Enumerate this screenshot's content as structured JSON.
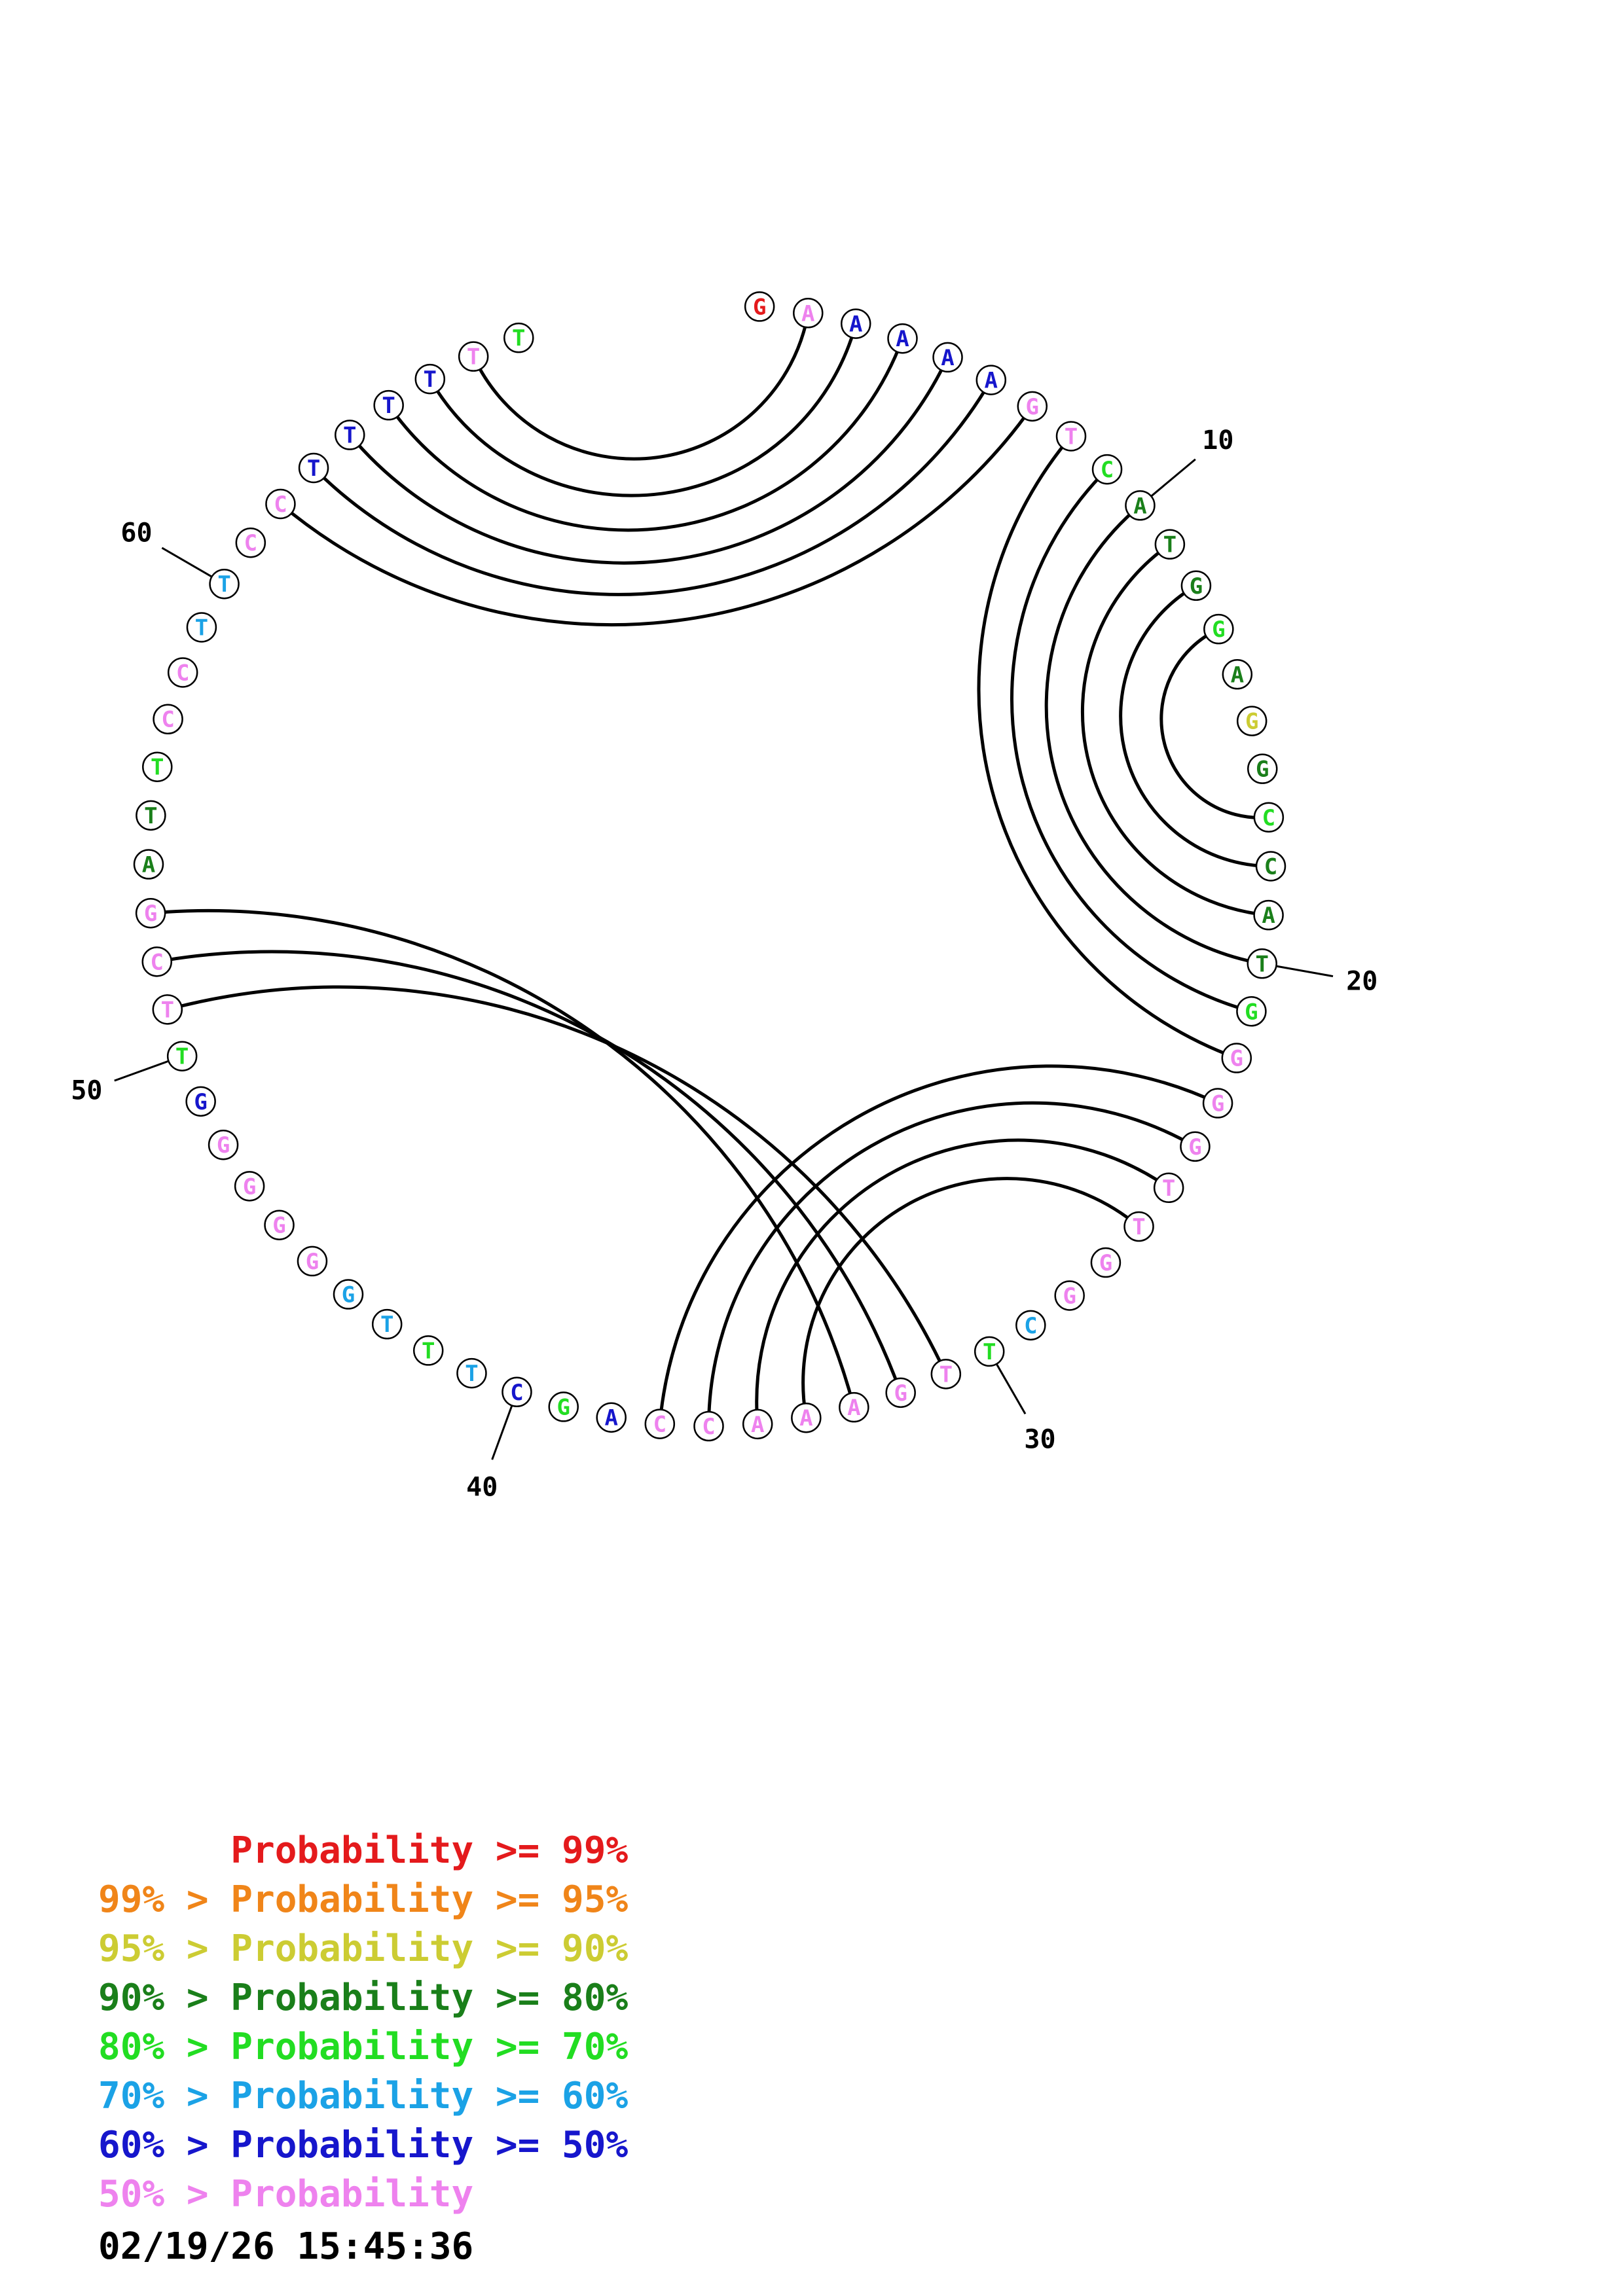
{
  "bases": [
    {
      "n": 1,
      "letter": "G",
      "color": "red"
    },
    {
      "n": 2,
      "letter": "A",
      "color": "pink"
    },
    {
      "n": 3,
      "letter": "A",
      "color": "blue"
    },
    {
      "n": 4,
      "letter": "A",
      "color": "blue"
    },
    {
      "n": 5,
      "letter": "A",
      "color": "blue"
    },
    {
      "n": 6,
      "letter": "A",
      "color": "blue"
    },
    {
      "n": 7,
      "letter": "G",
      "color": "pink"
    },
    {
      "n": 8,
      "letter": "T",
      "color": "pink"
    },
    {
      "n": 9,
      "letter": "C",
      "color": "green"
    },
    {
      "n": 10,
      "letter": "A",
      "color": "darkgreen"
    },
    {
      "n": 11,
      "letter": "T",
      "color": "darkgreen"
    },
    {
      "n": 12,
      "letter": "G",
      "color": "darkgreen"
    },
    {
      "n": 13,
      "letter": "G",
      "color": "green"
    },
    {
      "n": 14,
      "letter": "A",
      "color": "darkgreen"
    },
    {
      "n": 15,
      "letter": "G",
      "color": "yellow"
    },
    {
      "n": 16,
      "letter": "G",
      "color": "darkgreen"
    },
    {
      "n": 17,
      "letter": "C",
      "color": "green"
    },
    {
      "n": 18,
      "letter": "C",
      "color": "darkgreen"
    },
    {
      "n": 19,
      "letter": "A",
      "color": "darkgreen"
    },
    {
      "n": 20,
      "letter": "T",
      "color": "darkgreen"
    },
    {
      "n": 21,
      "letter": "G",
      "color": "green"
    },
    {
      "n": 22,
      "letter": "G",
      "color": "pink"
    },
    {
      "n": 23,
      "letter": "G",
      "color": "pink"
    },
    {
      "n": 24,
      "letter": "G",
      "color": "pink"
    },
    {
      "n": 25,
      "letter": "T",
      "color": "pink"
    },
    {
      "n": 26,
      "letter": "T",
      "color": "pink"
    },
    {
      "n": 27,
      "letter": "G",
      "color": "pink"
    },
    {
      "n": 28,
      "letter": "G",
      "color": "pink"
    },
    {
      "n": 29,
      "letter": "C",
      "color": "cyan"
    },
    {
      "n": 30,
      "letter": "T",
      "color": "green"
    },
    {
      "n": 31,
      "letter": "T",
      "color": "pink"
    },
    {
      "n": 32,
      "letter": "G",
      "color": "pink"
    },
    {
      "n": 33,
      "letter": "A",
      "color": "pink"
    },
    {
      "n": 34,
      "letter": "A",
      "color": "pink"
    },
    {
      "n": 35,
      "letter": "A",
      "color": "pink"
    },
    {
      "n": 36,
      "letter": "C",
      "color": "pink"
    },
    {
      "n": 37,
      "letter": "C",
      "color": "pink"
    },
    {
      "n": 38,
      "letter": "A",
      "color": "blue"
    },
    {
      "n": 39,
      "letter": "G",
      "color": "green"
    },
    {
      "n": 40,
      "letter": "C",
      "color": "blue"
    },
    {
      "n": 41,
      "letter": "T",
      "color": "cyan"
    },
    {
      "n": 42,
      "letter": "T",
      "color": "green"
    },
    {
      "n": 43,
      "letter": "T",
      "color": "cyan"
    },
    {
      "n": 44,
      "letter": "G",
      "color": "cyan"
    },
    {
      "n": 45,
      "letter": "G",
      "color": "pink"
    },
    {
      "n": 46,
      "letter": "G",
      "color": "pink"
    },
    {
      "n": 47,
      "letter": "G",
      "color": "pink"
    },
    {
      "n": 48,
      "letter": "G",
      "color": "pink"
    },
    {
      "n": 49,
      "letter": "G",
      "color": "blue"
    },
    {
      "n": 50,
      "letter": "T",
      "color": "green"
    },
    {
      "n": 51,
      "letter": "T",
      "color": "pink"
    },
    {
      "n": 52,
      "letter": "C",
      "color": "pink"
    },
    {
      "n": 53,
      "letter": "G",
      "color": "pink"
    },
    {
      "n": 54,
      "letter": "A",
      "color": "darkgreen"
    },
    {
      "n": 55,
      "letter": "T",
      "color": "darkgreen"
    },
    {
      "n": 56,
      "letter": "T",
      "color": "green"
    },
    {
      "n": 57,
      "letter": "C",
      "color": "pink"
    },
    {
      "n": 58,
      "letter": "C",
      "color": "pink"
    },
    {
      "n": 59,
      "letter": "T",
      "color": "cyan"
    },
    {
      "n": 60,
      "letter": "T",
      "color": "cyan"
    },
    {
      "n": 61,
      "letter": "C",
      "color": "pink"
    },
    {
      "n": 62,
      "letter": "C",
      "color": "pink"
    },
    {
      "n": 63,
      "letter": "T",
      "color": "blue"
    },
    {
      "n": 64,
      "letter": "T",
      "color": "blue"
    },
    {
      "n": 65,
      "letter": "T",
      "color": "blue"
    },
    {
      "n": 66,
      "letter": "T",
      "color": "blue"
    },
    {
      "n": 67,
      "letter": "T",
      "color": "pink"
    },
    {
      "n": 68,
      "letter": "T",
      "color": "green"
    }
  ],
  "pairs": [
    [
      2,
      67
    ],
    [
      3,
      66
    ],
    [
      4,
      65
    ],
    [
      5,
      64
    ],
    [
      6,
      63
    ],
    [
      7,
      62
    ],
    [
      8,
      22
    ],
    [
      9,
      21
    ],
    [
      10,
      20
    ],
    [
      11,
      19
    ],
    [
      12,
      18
    ],
    [
      13,
      17
    ],
    [
      23,
      37
    ],
    [
      24,
      36
    ],
    [
      25,
      35
    ],
    [
      26,
      34
    ],
    [
      31,
      51
    ],
    [
      32,
      52
    ],
    [
      33,
      53
    ]
  ],
  "tick_labels": [
    {
      "base": 10,
      "text": "10"
    },
    {
      "base": 20,
      "text": "20"
    },
    {
      "base": 30,
      "text": "30"
    },
    {
      "base": 40,
      "text": "40"
    },
    {
      "base": 50,
      "text": "50"
    },
    {
      "base": 60,
      "text": "60"
    }
  ],
  "colors": {
    "red": "#e41a1c",
    "orange": "#f08519",
    "yellow": "#cccc33",
    "darkgreen": "#1a7f1a",
    "green": "#22dd22",
    "cyan": "#1ba2e6",
    "blue": "#1616cc",
    "pink": "#ee82ee"
  },
  "legend": [
    {
      "text": "      Probability >= 99%",
      "color": "red"
    },
    {
      "text": "99% > Probability >= 95%",
      "color": "orange"
    },
    {
      "text": "95% > Probability >= 90%",
      "color": "yellow"
    },
    {
      "text": "90% > Probability >= 80%",
      "color": "darkgreen"
    },
    {
      "text": "80% > Probability >= 70%",
      "color": "green"
    },
    {
      "text": "70% > Probability >= 60%",
      "color": "cyan"
    },
    {
      "text": "60% > Probability >= 50%",
      "color": "blue"
    },
    {
      "text": "50% > Probability",
      "color": "pink"
    }
  ],
  "timestamp": "02/19/26 15:45:36"
}
